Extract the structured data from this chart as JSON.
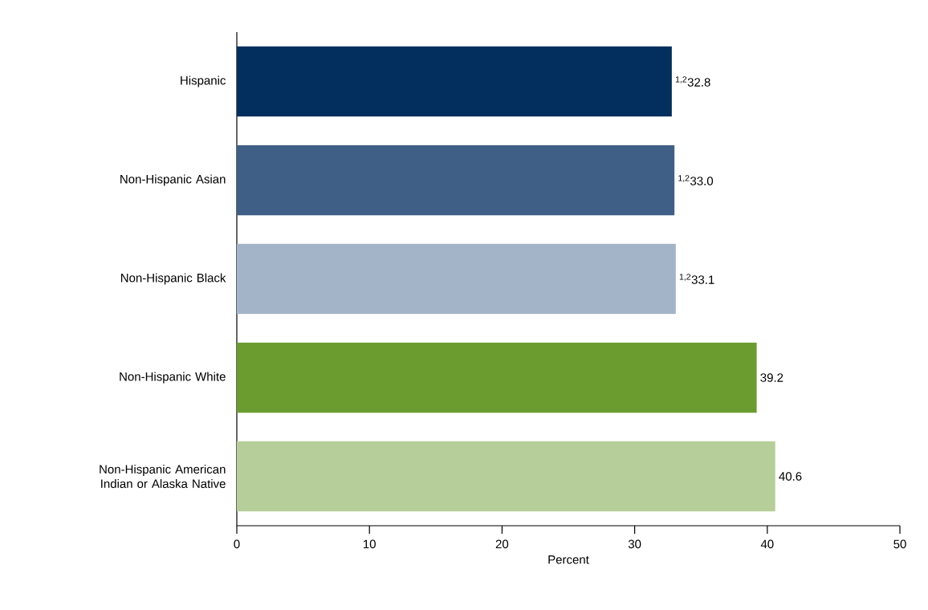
{
  "chart_data": {
    "type": "bar",
    "orientation": "horizontal",
    "xlabel": "Percent",
    "categories": [
      "Hispanic",
      "Non-Hispanic Asian",
      "Non-Hispanic Black",
      "Non-Hispanic White",
      "Non-Hispanic American Indian or Alaska Native"
    ],
    "values": [
      32.8,
      33.0,
      33.1,
      39.2,
      40.6
    ],
    "colors": [
      "#032f5e",
      "#3f5f87",
      "#a3b4c8",
      "#6b9c2f",
      "#b6cf9a"
    ],
    "value_labels": [
      "$^{1,2}$32.8",
      "$^{1,2}$33.0",
      "$^{1,2}$33.1",
      "39.2",
      "40.6"
    ],
    "xlim": [
      0,
      50
    ],
    "xticks": [
      0,
      10,
      20,
      30,
      40,
      50
    ]
  }
}
